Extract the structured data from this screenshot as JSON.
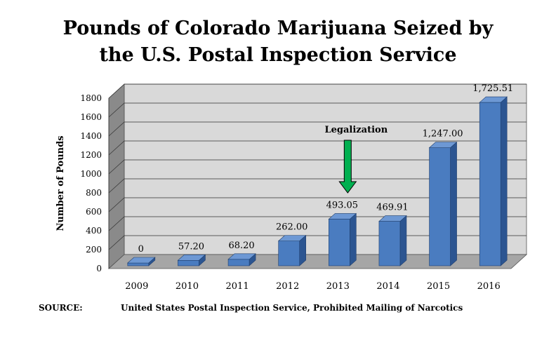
{
  "chart_data": {
    "type": "bar",
    "title_line1": "Pounds of Colorado Marijuana Seized by",
    "title_line2": "the U.S. Postal Inspection Service",
    "ylabel": "Number of Pounds",
    "xlabel": "",
    "ylim": [
      0,
      1800
    ],
    "yticks": [
      0,
      200,
      400,
      600,
      800,
      1000,
      1200,
      1400,
      1600,
      1800
    ],
    "categories": [
      "2009",
      "2010",
      "2011",
      "2012",
      "2013",
      "2014",
      "2015",
      "2016"
    ],
    "values": [
      0,
      57.2,
      68.2,
      262.0,
      493.05,
      469.91,
      1247.0,
      1725.51
    ],
    "value_labels": [
      "0",
      "57.20",
      "68.20",
      "262.00",
      "493.05",
      "469.91",
      "1,247.00",
      "1,725.51"
    ],
    "annotation": {
      "text": "Legalization",
      "category": "2013"
    },
    "grid": true
  },
  "colors": {
    "bar_front": "#4a7cc0",
    "bar_top": "#6d98d4",
    "bar_side": "#2c5591",
    "wall": "#d9d9d9",
    "side_wall": "#8a8a8a",
    "floor": "#a6a6a6",
    "arrow": "#00b050"
  },
  "source": {
    "label": "SOURCE:",
    "text": "United States Postal Inspection Service, Prohibited Mailing of Narcotics"
  }
}
